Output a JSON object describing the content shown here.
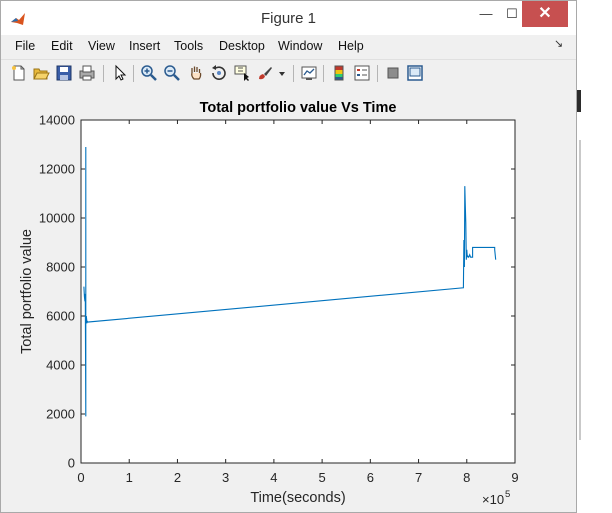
{
  "window": {
    "title": "Figure 1",
    "controls": {
      "minimize": "—",
      "maximize": "☐",
      "close": "✕"
    }
  },
  "menu": {
    "items": [
      "File",
      "Edit",
      "View",
      "Insert",
      "Tools",
      "Desktop",
      "Window",
      "Help"
    ]
  },
  "toolbar": {
    "buttons": [
      "new-figure-icon",
      "open-file-icon",
      "save-icon",
      "print-icon",
      "edit-plot-arrow-icon",
      "zoom-in-icon",
      "zoom-out-icon",
      "pan-hand-icon",
      "rotate-3d-icon",
      "data-cursor-icon",
      "brush-icon",
      "brush-dropdown-icon",
      "link-plot-icon",
      "colorbar-icon",
      "legend-icon",
      "hide-plot-tools-icon",
      "show-plot-tools-icon"
    ]
  },
  "colors": {
    "line": "#0072bd",
    "close_button": "#c75050",
    "figure_bg": "#f0f0f0"
  },
  "chart_data": {
    "type": "line",
    "title": "Total portfolio value Vs Time",
    "xlabel": "Time(seconds)",
    "ylabel": "Total portfolio value",
    "x_exponent_label": "×10",
    "x_exponent_power": "5",
    "xlim": [
      0,
      9
    ],
    "ylim": [
      0,
      14000
    ],
    "xticks": [
      "0",
      "1",
      "2",
      "3",
      "4",
      "5",
      "6",
      "7",
      "8",
      "9"
    ],
    "yticks": [
      "0",
      "2000",
      "4000",
      "6000",
      "8000",
      "10000",
      "12000",
      "14000"
    ],
    "x_units_note": "x values in units of 1e5 seconds",
    "series": [
      {
        "x": [
          0.06,
          0.07,
          0.08,
          0.09,
          0.1,
          0.1,
          0.1,
          0.1,
          0.11,
          0.11,
          0.12,
          0.12,
          0.13,
          0.13,
          7.93,
          7.94,
          7.95,
          7.96,
          7.97,
          7.98,
          7.99,
          8.0,
          8.01,
          8.02,
          8.04,
          8.06,
          8.08,
          8.12,
          8.12,
          8.58,
          8.58,
          8.6
        ],
        "y": [
          7200,
          6800,
          6600,
          6900,
          1900,
          12900,
          1900,
          6000,
          5800,
          6000,
          5800,
          5700,
          5800,
          5750,
          7150,
          9100,
          8000,
          11300,
          10500,
          9800,
          8300,
          8700,
          8400,
          8450,
          8400,
          8500,
          8400,
          8400,
          8800,
          8800,
          8700,
          8300
        ]
      }
    ]
  }
}
